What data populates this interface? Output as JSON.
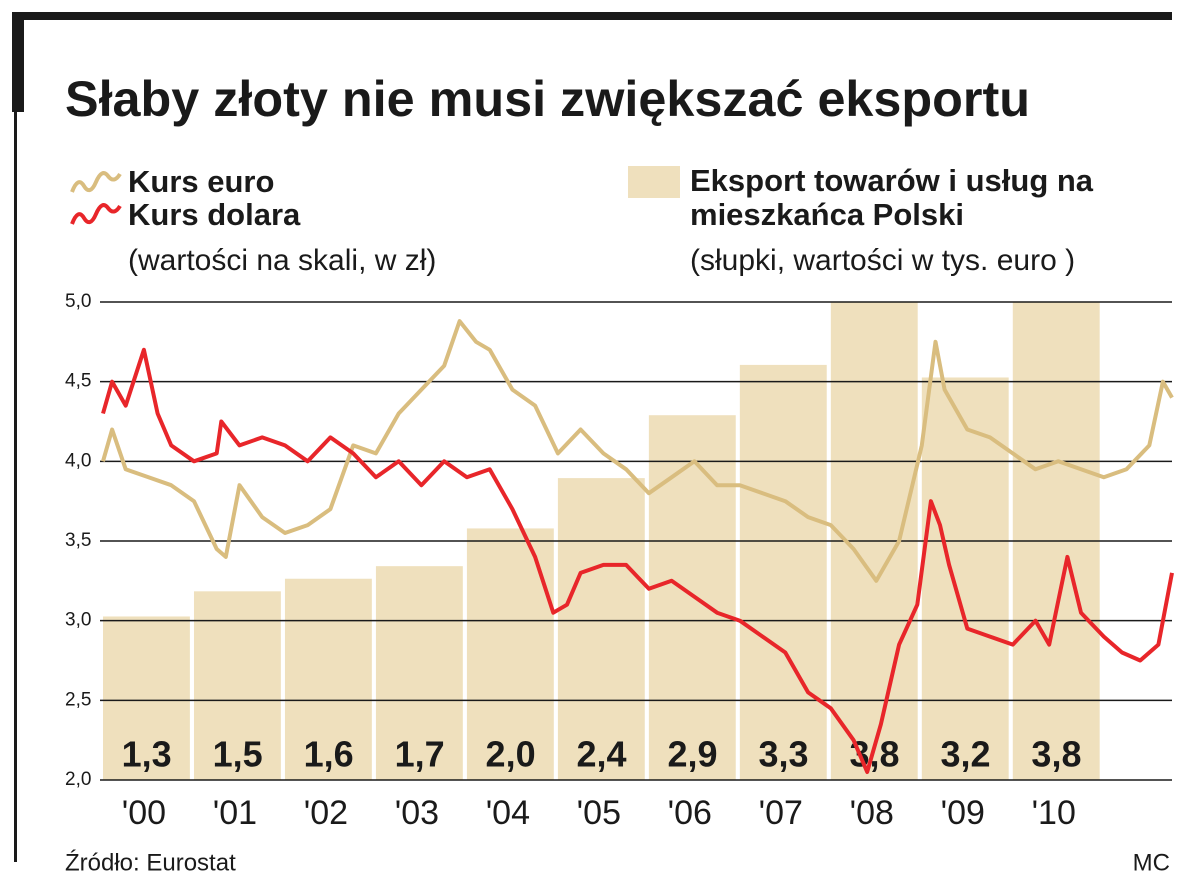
{
  "chart_data": {
    "type": "combo",
    "title": "Słaby złoty nie musi zwiększać eksportu",
    "categories": [
      "'00",
      "'01",
      "'02",
      "'03",
      "'04",
      "'05",
      "'06",
      "'07",
      "'08",
      "'09",
      "'10"
    ],
    "ylim": [
      2.0,
      5.0
    ],
    "yticks": [
      {
        "value": 2.0,
        "label": "2,0"
      },
      {
        "value": 2.5,
        "label": "2,5"
      },
      {
        "value": 3.0,
        "label": "3,0"
      },
      {
        "value": 3.5,
        "label": "3,5"
      },
      {
        "value": 4.0,
        "label": "4,0"
      },
      {
        "value": 4.5,
        "label": "4,5"
      },
      {
        "value": 5.0,
        "label": "5,0"
      }
    ],
    "y2lim": [
      0,
      3.8
    ],
    "xlim": [
      2000,
      2011.75
    ],
    "grid": true,
    "annotations": [
      "(wartości na skali, w zł)",
      "(słupki, wartości w tys. euro )"
    ],
    "source": "Źródło: Eurostat",
    "credit": "MC",
    "series": [
      {
        "name": "Eksport towarów i usług na mieszkańca Polski",
        "type": "bar",
        "axis": "y2",
        "color": "#efe0bd",
        "values": [
          1.3,
          1.5,
          1.6,
          1.7,
          2.0,
          2.4,
          2.9,
          3.3,
          3.8,
          3.2,
          3.8
        ],
        "value_labels": [
          "1,3",
          "1,5",
          "1,6",
          "1,7",
          "2,0",
          "2,4",
          "2,9",
          "3,3",
          "3,8",
          "3,2",
          "3,8"
        ]
      },
      {
        "name": "Kurs euro",
        "type": "line",
        "color": "#d9bd7f",
        "x": [
          2000.0,
          2000.1,
          2000.25,
          2000.5,
          2000.75,
          2001.0,
          2001.25,
          2001.35,
          2001.5,
          2001.75,
          2002.0,
          2002.25,
          2002.5,
          2002.75,
          2003.0,
          2003.25,
          2003.5,
          2003.75,
          2003.92,
          2004.1,
          2004.25,
          2004.5,
          2004.75,
          2005.0,
          2005.25,
          2005.5,
          2005.75,
          2006.0,
          2006.25,
          2006.5,
          2006.75,
          2007.0,
          2007.25,
          2007.5,
          2007.75,
          2008.0,
          2008.25,
          2008.5,
          2008.75,
          2009.0,
          2009.15,
          2009.25,
          2009.5,
          2009.75,
          2010.0,
          2010.25,
          2010.5,
          2010.75,
          2011.0,
          2011.25,
          2011.5,
          2011.65,
          2011.75
        ],
        "values": [
          4.0,
          4.2,
          3.95,
          3.9,
          3.85,
          3.75,
          3.45,
          3.4,
          3.85,
          3.65,
          3.55,
          3.6,
          3.7,
          4.1,
          4.05,
          4.3,
          4.45,
          4.6,
          4.88,
          4.75,
          4.7,
          4.45,
          4.35,
          4.05,
          4.2,
          4.05,
          3.95,
          3.8,
          3.9,
          4.0,
          3.85,
          3.85,
          3.8,
          3.75,
          3.65,
          3.6,
          3.45,
          3.25,
          3.5,
          4.1,
          4.75,
          4.45,
          4.2,
          4.15,
          4.05,
          3.95,
          4.0,
          3.95,
          3.9,
          3.95,
          4.1,
          4.5,
          4.4
        ]
      },
      {
        "name": "Kurs dolara",
        "type": "line",
        "color": "#e8262a",
        "x": [
          2000.0,
          2000.1,
          2000.25,
          2000.45,
          2000.6,
          2000.75,
          2001.0,
          2001.25,
          2001.3,
          2001.5,
          2001.75,
          2002.0,
          2002.25,
          2002.5,
          2002.75,
          2003.0,
          2003.25,
          2003.5,
          2003.75,
          2004.0,
          2004.25,
          2004.5,
          2004.75,
          2004.95,
          2005.1,
          2005.25,
          2005.5,
          2005.75,
          2006.0,
          2006.25,
          2006.5,
          2006.75,
          2007.0,
          2007.25,
          2007.5,
          2007.75,
          2008.0,
          2008.25,
          2008.4,
          2008.55,
          2008.75,
          2008.95,
          2009.1,
          2009.2,
          2009.3,
          2009.5,
          2009.75,
          2010.0,
          2010.25,
          2010.4,
          2010.6,
          2010.75,
          2011.0,
          2011.2,
          2011.4,
          2011.6,
          2011.75
        ],
        "values": [
          4.3,
          4.5,
          4.35,
          4.7,
          4.3,
          4.1,
          4.0,
          4.05,
          4.25,
          4.1,
          4.15,
          4.1,
          4.0,
          4.15,
          4.05,
          3.9,
          4.0,
          3.85,
          4.0,
          3.9,
          3.95,
          3.7,
          3.4,
          3.05,
          3.1,
          3.3,
          3.35,
          3.35,
          3.2,
          3.25,
          3.15,
          3.05,
          3.0,
          2.9,
          2.8,
          2.55,
          2.45,
          2.25,
          2.05,
          2.35,
          2.85,
          3.1,
          3.75,
          3.6,
          3.35,
          2.95,
          2.9,
          2.85,
          3.0,
          2.85,
          3.4,
          3.05,
          2.9,
          2.8,
          2.75,
          2.85,
          3.3
        ]
      }
    ]
  }
}
